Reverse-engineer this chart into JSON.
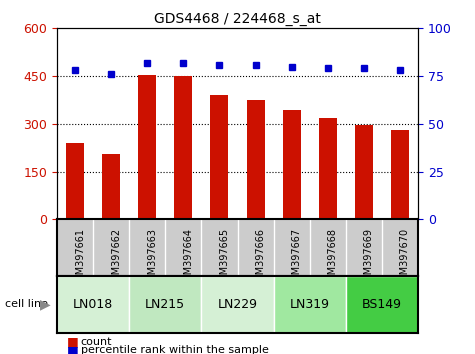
{
  "title": "GDS4468 / 224468_s_at",
  "samples": [
    "GSM397661",
    "GSM397662",
    "GSM397663",
    "GSM397664",
    "GSM397665",
    "GSM397666",
    "GSM397667",
    "GSM397668",
    "GSM397669",
    "GSM397670"
  ],
  "counts": [
    240,
    205,
    452,
    450,
    390,
    375,
    345,
    320,
    295,
    280
  ],
  "percentile_ranks": [
    78,
    76,
    82,
    82,
    81,
    81,
    80,
    79,
    79,
    78
  ],
  "cell_lines": [
    {
      "name": "LN018",
      "start": 0,
      "end": 2,
      "color": "#d5f0d5"
    },
    {
      "name": "LN215",
      "start": 2,
      "end": 4,
      "color": "#c0e8c0"
    },
    {
      "name": "LN229",
      "start": 4,
      "end": 6,
      "color": "#d5f0d5"
    },
    {
      "name": "LN319",
      "start": 6,
      "end": 8,
      "color": "#a0e8a0"
    },
    {
      "name": "BS149",
      "start": 8,
      "end": 10,
      "color": "#44cc44"
    }
  ],
  "ylim_left": [
    0,
    600
  ],
  "ylim_right": [
    0,
    100
  ],
  "yticks_left": [
    0,
    150,
    300,
    450,
    600
  ],
  "yticks_right": [
    0,
    25,
    50,
    75,
    100
  ],
  "bar_color": "#cc1100",
  "dot_color": "#0000cc",
  "bg_color": "#ffffff",
  "grid_color": "#000000",
  "bar_width": 0.5,
  "xlabel_color": "#555555",
  "tick_label_area_color": "#cccccc"
}
